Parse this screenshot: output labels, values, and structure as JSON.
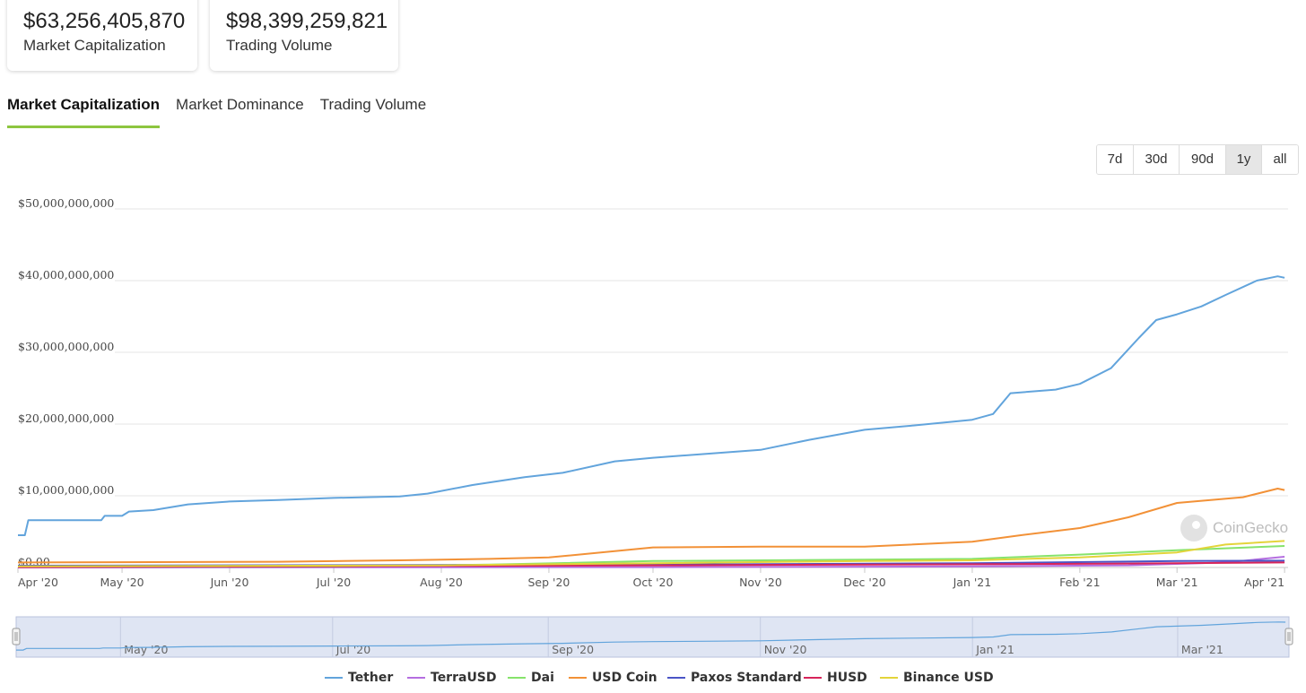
{
  "stats": {
    "market_cap": {
      "value": "$63,256,405,870",
      "label": "Market Capitalization"
    },
    "trading_volume": {
      "value": "$98,399,259,821",
      "label": "Trading Volume"
    }
  },
  "tabs": [
    {
      "label": "Market Capitalization",
      "active": true
    },
    {
      "label": "Market Dominance",
      "active": false
    },
    {
      "label": "Trading Volume",
      "active": false
    }
  ],
  "ranges": [
    {
      "label": "7d",
      "selected": false
    },
    {
      "label": "30d",
      "selected": false
    },
    {
      "label": "90d",
      "selected": false
    },
    {
      "label": "1y",
      "selected": true
    },
    {
      "label": "all",
      "selected": false
    }
  ],
  "watermark": {
    "text": "CoinGecko",
    "icon": "gecko-logo-icon"
  },
  "colors": {
    "accent": "#8dc63f",
    "grid": "#e6e6e6",
    "navigator_bg": "#dfe5f3"
  },
  "chart_data": {
    "type": "line",
    "title": "",
    "xlabel": "",
    "ylabel": "",
    "x_ticks": [
      "Apr '20",
      "May '20",
      "Jun '20",
      "Jul '20",
      "Aug '20",
      "Sep '20",
      "Oct '20",
      "Nov '20",
      "Dec '20",
      "Jan '21",
      "Feb '21",
      "Mar '21",
      "Apr '21"
    ],
    "y_ticks": [
      "$0.00",
      "$10,000,000,000",
      "$20,000,000,000",
      "$30,000,000,000",
      "$40,000,000,000",
      "$50,000,000,000"
    ],
    "ylim": [
      0,
      50000000000
    ],
    "xlim": [
      "2020-04-01",
      "2021-04-02"
    ],
    "grid": true,
    "legend_position": "bottom",
    "navigator_ticks": [
      "May '20",
      "Jul '20",
      "Sep '20",
      "Nov '20",
      "Jan '21",
      "Mar '21"
    ],
    "series": [
      {
        "name": "Tether",
        "color": "#62a4dc",
        "values": [
          [
            "2020-04-01",
            4.5
          ],
          [
            "2020-04-03",
            4.5
          ],
          [
            "2020-04-04",
            6.6
          ],
          [
            "2020-04-25",
            6.6
          ],
          [
            "2020-04-26",
            7.2
          ],
          [
            "2020-05-01",
            7.2
          ],
          [
            "2020-05-03",
            7.8
          ],
          [
            "2020-05-10",
            8.0
          ],
          [
            "2020-05-20",
            8.8
          ],
          [
            "2020-06-01",
            9.2
          ],
          [
            "2020-06-15",
            9.4
          ],
          [
            "2020-07-01",
            9.7
          ],
          [
            "2020-07-20",
            9.9
          ],
          [
            "2020-07-28",
            10.3
          ],
          [
            "2020-08-10",
            11.5
          ],
          [
            "2020-08-25",
            12.6
          ],
          [
            "2020-09-05",
            13.2
          ],
          [
            "2020-09-20",
            14.8
          ],
          [
            "2020-10-01",
            15.3
          ],
          [
            "2020-10-15",
            15.8
          ],
          [
            "2020-11-01",
            16.4
          ],
          [
            "2020-11-15",
            17.8
          ],
          [
            "2020-12-01",
            19.2
          ],
          [
            "2020-12-15",
            19.8
          ],
          [
            "2021-01-01",
            20.6
          ],
          [
            "2021-01-07",
            21.4
          ],
          [
            "2021-01-12",
            24.3
          ],
          [
            "2021-01-25",
            24.8
          ],
          [
            "2021-02-01",
            25.6
          ],
          [
            "2021-02-10",
            27.8
          ],
          [
            "2021-02-18",
            32.0
          ],
          [
            "2021-02-23",
            34.5
          ],
          [
            "2021-03-01",
            35.3
          ],
          [
            "2021-03-08",
            36.4
          ],
          [
            "2021-03-15",
            38.0
          ],
          [
            "2021-03-24",
            40.0
          ],
          [
            "2021-03-30",
            40.6
          ],
          [
            "2021-04-01",
            40.4
          ]
        ]
      },
      {
        "name": "TerraUSD",
        "color": "#b56ee0",
        "values": [
          [
            "2020-04-01",
            0.0
          ],
          [
            "2020-10-01",
            0.05
          ],
          [
            "2021-01-01",
            0.15
          ],
          [
            "2021-02-15",
            0.3
          ],
          [
            "2021-03-15",
            0.7
          ],
          [
            "2021-04-01",
            1.5
          ]
        ]
      },
      {
        "name": "Dai",
        "color": "#86e36b",
        "values": [
          [
            "2020-04-01",
            0.1
          ],
          [
            "2020-07-01",
            0.12
          ],
          [
            "2020-08-15",
            0.4
          ],
          [
            "2020-10-01",
            0.9
          ],
          [
            "2020-12-01",
            1.1
          ],
          [
            "2021-01-01",
            1.2
          ],
          [
            "2021-02-01",
            1.8
          ],
          [
            "2021-03-01",
            2.4
          ],
          [
            "2021-04-01",
            3.0
          ]
        ]
      },
      {
        "name": "USD Coin",
        "color": "#f29137",
        "values": [
          [
            "2020-04-01",
            0.7
          ],
          [
            "2020-06-15",
            0.8
          ],
          [
            "2020-07-20",
            1.0
          ],
          [
            "2020-08-15",
            1.2
          ],
          [
            "2020-09-01",
            1.4
          ],
          [
            "2020-10-01",
            2.8
          ],
          [
            "2020-11-01",
            2.9
          ],
          [
            "2020-12-01",
            2.9
          ],
          [
            "2021-01-01",
            3.6
          ],
          [
            "2021-01-15",
            4.5
          ],
          [
            "2021-02-01",
            5.5
          ],
          [
            "2021-02-15",
            7.0
          ],
          [
            "2021-03-01",
            9.0
          ],
          [
            "2021-03-20",
            9.8
          ],
          [
            "2021-03-30",
            11.0
          ],
          [
            "2021-04-01",
            10.8
          ]
        ]
      },
      {
        "name": "Paxos Standard",
        "color": "#4a55c6",
        "values": [
          [
            "2020-04-01",
            0.25
          ],
          [
            "2020-10-01",
            0.4
          ],
          [
            "2021-01-01",
            0.6
          ],
          [
            "2021-03-01",
            0.9
          ],
          [
            "2021-04-01",
            0.95
          ]
        ]
      },
      {
        "name": "HUSD",
        "color": "#d7245a",
        "values": [
          [
            "2020-04-01",
            0.05
          ],
          [
            "2020-10-01",
            0.3
          ],
          [
            "2021-01-01",
            0.45
          ],
          [
            "2021-02-15",
            0.55
          ],
          [
            "2021-04-01",
            0.7
          ]
        ]
      },
      {
        "name": "Binance USD",
        "color": "#e3d43a",
        "values": [
          [
            "2020-04-01",
            0.15
          ],
          [
            "2020-08-01",
            0.3
          ],
          [
            "2020-10-01",
            0.6
          ],
          [
            "2020-12-01",
            0.9
          ],
          [
            "2021-01-01",
            1.0
          ],
          [
            "2021-02-01",
            1.4
          ],
          [
            "2021-03-01",
            2.1
          ],
          [
            "2021-03-15",
            3.2
          ],
          [
            "2021-04-01",
            3.7
          ]
        ]
      }
    ]
  }
}
